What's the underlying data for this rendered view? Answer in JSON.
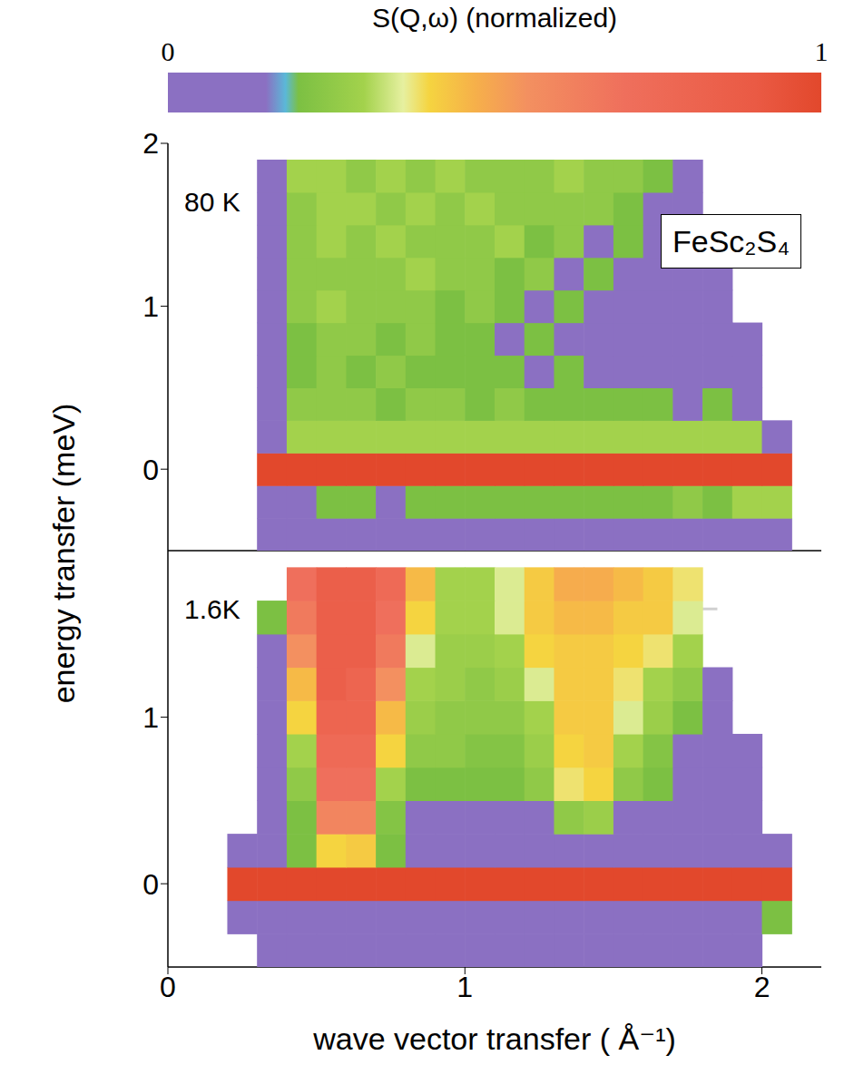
{
  "chart_data": {
    "type": "heatmap",
    "title": "S(Q,ω) (normalized)",
    "x_label": "wave vector transfer ( Å⁻¹)",
    "y_label": "energy transfer (meV)",
    "annotation": "FeSc₂S₄",
    "colorbar": {
      "range": [
        0,
        1
      ],
      "ticks": [
        0,
        1
      ]
    },
    "panels": [
      {
        "label": "80 K",
        "xlim": [
          0,
          2.2
        ],
        "xticks": [
          0,
          1,
          2
        ],
        "ylim": [
          -0.5,
          2
        ],
        "yticks": [
          0,
          1,
          2
        ],
        "tick_labels": "y",
        "x": [
          0.25,
          0.35,
          0.45,
          0.55,
          0.65,
          0.75,
          0.85,
          0.95,
          1.05,
          1.15,
          1.25,
          1.35,
          1.45,
          1.55,
          1.65,
          1.75,
          1.85,
          1.95,
          2.05
        ],
        "y": [
          -0.4,
          -0.2,
          0,
          0.2,
          0.4,
          0.6,
          0.8,
          1.0,
          1.2,
          1.4,
          1.6,
          1.8
        ],
        "cells": [
          [
            null,
            0,
            0.05,
            0.05,
            0.05,
            0.05,
            0.05,
            0.05,
            0.05,
            0.05,
            0.05,
            0.05,
            0.05,
            0.05,
            0.05,
            0.05,
            0.1,
            0.05,
            0.05
          ],
          [
            null,
            0.1,
            0.15,
            0.2,
            0.2,
            0.15,
            0.2,
            0.2,
            0.2,
            0.2,
            0.2,
            0.2,
            0.2,
            0.2,
            0.2,
            0.25,
            0.2,
            0.3,
            0.3
          ],
          [
            null,
            1,
            1,
            1,
            1,
            1,
            1,
            1,
            1,
            1,
            1,
            1,
            1,
            1,
            1,
            1,
            1,
            1,
            1
          ],
          [
            null,
            0.15,
            0.3,
            0.3,
            0.3,
            0.3,
            0.3,
            0.3,
            0.3,
            0.3,
            0.3,
            0.3,
            0.3,
            0.3,
            0.3,
            0.3,
            0.3,
            0.3,
            0.1
          ],
          [
            null,
            0.1,
            0.25,
            0.25,
            0.25,
            0.2,
            0.25,
            0.25,
            0.2,
            0.25,
            0.2,
            0.2,
            0.2,
            0.2,
            0.2,
            0.15,
            0.2,
            0.1,
            null
          ],
          [
            null,
            0.1,
            0.2,
            0.25,
            0.2,
            0.25,
            0.2,
            0.2,
            0.2,
            0.2,
            0.15,
            0.2,
            0.15,
            0.1,
            0.15,
            0.1,
            0.05,
            0.05,
            null
          ],
          [
            null,
            0.1,
            0.2,
            0.25,
            0.25,
            0.2,
            0.25,
            0.2,
            0.2,
            0.15,
            0.2,
            0.1,
            0.15,
            0.1,
            0.1,
            0.05,
            0.05,
            0.05,
            null
          ],
          [
            null,
            0.1,
            0.25,
            0.3,
            0.25,
            0.25,
            0.25,
            0.2,
            0.25,
            0.2,
            0.15,
            0.2,
            0.1,
            0.15,
            0.1,
            0.05,
            0.05,
            null,
            null
          ],
          [
            null,
            0.1,
            0.25,
            0.25,
            0.25,
            0.25,
            0.3,
            0.25,
            0.25,
            0.2,
            0.25,
            0.15,
            0.2,
            0.15,
            0.1,
            0.05,
            0.05,
            null,
            null
          ],
          [
            null,
            0.1,
            0.25,
            0.3,
            0.25,
            0.3,
            0.25,
            0.25,
            0.25,
            0.3,
            0.2,
            0.25,
            0.15,
            0.2,
            0.15,
            0.1,
            0.05,
            null,
            null
          ],
          [
            null,
            0.15,
            0.25,
            0.3,
            0.3,
            0.25,
            0.3,
            0.25,
            0.3,
            0.25,
            0.25,
            0.25,
            0.25,
            0.2,
            0.15,
            0.1,
            null,
            null,
            null
          ],
          [
            null,
            0.15,
            0.3,
            0.3,
            0.25,
            0.3,
            0.25,
            0.3,
            0.25,
            0.25,
            0.25,
            0.3,
            0.25,
            0.25,
            0.2,
            0.1,
            null,
            null,
            null
          ]
        ]
      },
      {
        "label": "1.6K",
        "xlim": [
          0,
          2.2
        ],
        "xticks": [
          0,
          1,
          2
        ],
        "ylim": [
          -0.5,
          2
        ],
        "yticks": [
          0,
          1
        ],
        "x": [
          0.25,
          0.35,
          0.45,
          0.55,
          0.65,
          0.75,
          0.85,
          0.95,
          1.05,
          1.15,
          1.25,
          1.35,
          1.45,
          1.55,
          1.65,
          1.75,
          1.85,
          1.95,
          2.05
        ],
        "y": [
          -0.4,
          -0.2,
          0,
          0.2,
          0.4,
          0.6,
          0.8,
          1.0,
          1.2,
          1.4,
          1.6,
          1.8
        ],
        "cells": [
          [
            null,
            0,
            0,
            0,
            0,
            0,
            0,
            0,
            0,
            0,
            0,
            0,
            0,
            0,
            0,
            0,
            0,
            0,
            null
          ],
          [
            0.05,
            0.1,
            0.15,
            0.1,
            0.1,
            0.05,
            0.05,
            0.05,
            0.05,
            0.05,
            0.05,
            0.05,
            0.05,
            0.05,
            0.05,
            0.05,
            0.1,
            0.15,
            0.2
          ],
          [
            1,
            1,
            1,
            1,
            1,
            1,
            1,
            1,
            1,
            1,
            1,
            1,
            1,
            1,
            1,
            1,
            1,
            1,
            1
          ],
          [
            0.05,
            0.1,
            0.2,
            0.4,
            0.42,
            0.2,
            0.05,
            0.05,
            0.1,
            0.05,
            0.05,
            0.05,
            0.05,
            0.05,
            0.05,
            0.05,
            0.05,
            0.05,
            0.05
          ],
          [
            null,
            0.05,
            0.2,
            0.6,
            0.6,
            0.22,
            0.1,
            0.05,
            0.05,
            0.1,
            0.15,
            0.25,
            0.28,
            0.15,
            0.1,
            0.05,
            0.05,
            0.05,
            null
          ],
          [
            null,
            0.05,
            0.25,
            0.7,
            0.7,
            0.3,
            0.2,
            0.2,
            0.2,
            0.2,
            0.25,
            0.38,
            0.4,
            0.25,
            0.2,
            0.1,
            0.05,
            0.05,
            null
          ],
          [
            null,
            0.1,
            0.3,
            0.75,
            0.75,
            0.4,
            0.25,
            0.25,
            0.22,
            0.22,
            0.28,
            0.4,
            0.42,
            0.3,
            0.22,
            0.15,
            0.1,
            0.05,
            null
          ],
          [
            null,
            0.1,
            0.4,
            0.8,
            0.8,
            0.45,
            0.28,
            0.25,
            0.25,
            0.25,
            0.3,
            0.42,
            0.42,
            0.35,
            0.28,
            0.2,
            0.15,
            null,
            null
          ],
          [
            null,
            0.1,
            0.45,
            0.85,
            0.8,
            0.55,
            0.3,
            0.28,
            0.25,
            0.28,
            0.35,
            0.42,
            0.42,
            0.38,
            0.3,
            0.25,
            0.15,
            null,
            null
          ],
          [
            null,
            0.15,
            0.55,
            0.85,
            0.85,
            0.65,
            0.35,
            0.28,
            0.28,
            0.3,
            0.4,
            0.42,
            0.42,
            0.4,
            0.38,
            0.3,
            null,
            null,
            null
          ],
          [
            null,
            0.2,
            0.65,
            0.85,
            0.85,
            0.7,
            0.4,
            0.3,
            0.3,
            0.35,
            0.42,
            0.45,
            0.45,
            0.42,
            0.42,
            0.35,
            null,
            null,
            null
          ],
          [
            null,
            null,
            0.7,
            0.85,
            0.85,
            0.75,
            0.45,
            0.3,
            0.3,
            0.35,
            0.42,
            0.48,
            0.48,
            0.45,
            0.42,
            0.38,
            null,
            null,
            null
          ]
        ],
        "guide_lines": [
          {
            "x": [
              0.6,
              0.6
            ],
            "y": [
              0,
              1.88
            ]
          },
          {
            "x": [
              0.38,
              1.85
            ],
            "y": [
              1.65,
              1.65
            ]
          }
        ]
      }
    ]
  }
}
